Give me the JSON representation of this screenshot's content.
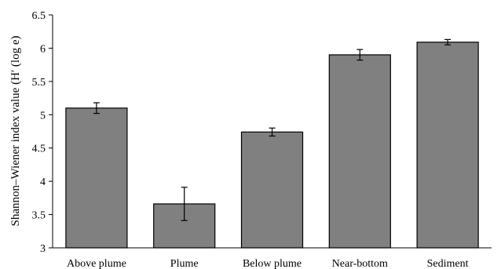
{
  "chart_data": {
    "type": "bar",
    "title": "",
    "xlabel": "",
    "ylabel": "Shannon–Wiener index value (H′ (log e)",
    "categories": [
      "Above plume",
      "Plume",
      "Below plume",
      "Near-bottom",
      "Sediment"
    ],
    "values": [
      5.1,
      3.66,
      4.74,
      5.9,
      6.09
    ],
    "errors": [
      0.08,
      0.25,
      0.06,
      0.08,
      0.04
    ],
    "ylim": [
      3,
      6.5
    ],
    "yticks": [
      3,
      3.5,
      4,
      4.5,
      5,
      5.5,
      6,
      6.5
    ],
    "ytick_labels": [
      "3",
      "3.5",
      "4",
      "4.5",
      "5",
      "5.5",
      "6",
      "6.5"
    ],
    "grid": false,
    "legend": "none",
    "bar_color": "#808080",
    "bar_edge_color": "#000000"
  }
}
